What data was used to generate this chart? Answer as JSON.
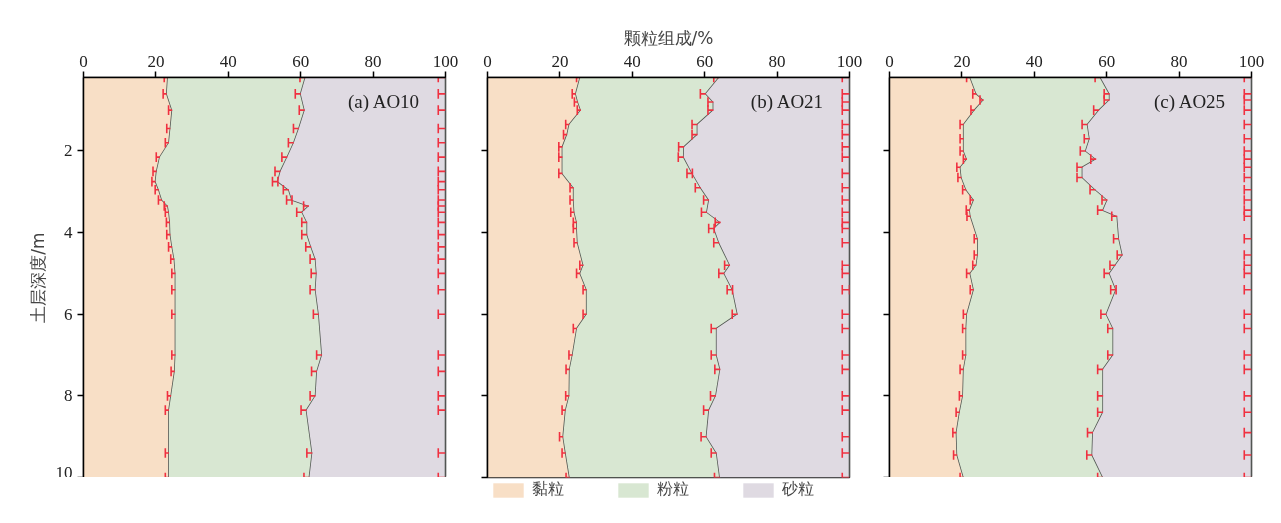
{
  "chart_data": [
    {
      "type": "area",
      "stacked": true,
      "orientation": "horizontal",
      "title": "(a) AO10",
      "ylabel": "土层深度/m",
      "xlim": [
        0,
        100
      ],
      "xticks": [
        0,
        20,
        40,
        60,
        80,
        100
      ],
      "ylim": [
        10,
        0.2
      ],
      "yticks": [
        2,
        4,
        6,
        8,
        10
      ],
      "x": [
        0.2,
        0.6,
        1.0,
        1.45,
        1.8,
        2.15,
        2.5,
        2.75,
        2.95,
        3.2,
        3.35,
        3.5,
        3.75,
        4.05,
        4.35,
        4.65,
        5.0,
        5.4,
        6.0,
        7.0,
        7.4,
        8.0,
        8.35,
        9.4,
        10.0
      ],
      "series": [
        {
          "color": "#f8dfc6",
          "values": [
            23.3,
            23.0,
            24.5,
            24.0,
            23.6,
            21.1,
            20.2,
            19.9,
            20.8,
            21.7,
            23.3,
            23.6,
            23.9,
            24.0,
            24.5,
            25.1,
            25.4,
            25.4,
            25.4,
            25.4,
            25.2,
            24.2,
            23.6,
            23.6,
            23.6
          ],
          "errors": [
            [
              22.3,
              23.3
            ],
            [
              22.0,
              23.0
            ],
            [
              23.5,
              24.5
            ],
            [
              23.0,
              24.0
            ],
            [
              22.6,
              23.6
            ],
            [
              20.1,
              21.1
            ],
            [
              19.2,
              20.2
            ],
            [
              18.9,
              19.9
            ],
            [
              19.8,
              20.8
            ],
            [
              20.7,
              21.7
            ],
            [
              22.3,
              23.3
            ],
            [
              22.6,
              23.6
            ],
            [
              22.9,
              23.9
            ],
            [
              23.0,
              24.0
            ],
            [
              23.5,
              24.5
            ],
            [
              24.1,
              25.1
            ],
            [
              24.4,
              25.4
            ],
            [
              24.4,
              25.4
            ],
            [
              24.4,
              25.4
            ],
            [
              24.4,
              25.4
            ],
            [
              24.2,
              25.2
            ],
            [
              23.2,
              24.2
            ],
            [
              22.6,
              23.6
            ],
            [
              22.6,
              23.6
            ],
            [
              22.6,
              23.6
            ]
          ]
        },
        {
          "color": "#d8e7d2",
          "values": [
            38.0,
            37.0,
            36.6,
            35.5,
            34.5,
            35.2,
            34.2,
            33.8,
            35.9,
            35.9,
            39.0,
            36.8,
            37.9,
            37.8,
            38.4,
            39.0,
            39.0,
            38.7,
            39.6,
            40.5,
            39.3,
            39.9,
            38.0,
            39.6,
            38.8
          ],
          "errors": [
            [
              59.8,
              61.3
            ],
            [
              58.5,
              60.0
            ],
            [
              59.6,
              61.1
            ],
            [
              58.0,
              59.5
            ],
            [
              56.6,
              58.1
            ],
            [
              54.8,
              56.3
            ],
            [
              52.9,
              54.4
            ],
            [
              52.2,
              53.7
            ],
            [
              55.2,
              56.7
            ],
            [
              56.1,
              57.6
            ],
            [
              60.8,
              62.3
            ],
            [
              58.9,
              60.4
            ],
            [
              60.3,
              61.8
            ],
            [
              60.3,
              61.8
            ],
            [
              61.4,
              62.9
            ],
            [
              62.6,
              64.1
            ],
            [
              62.9,
              64.4
            ],
            [
              62.6,
              64.1
            ],
            [
              63.5,
              65.0
            ],
            [
              64.4,
              65.9
            ],
            [
              63.0,
              64.5
            ],
            [
              62.6,
              64.1
            ],
            [
              60.1,
              61.6
            ],
            [
              61.7,
              63.2
            ],
            [
              60.9,
              62.4
            ]
          ]
        },
        {
          "color": "#dfdae2",
          "values": [
            38.7,
            40.0,
            38.9,
            40.5,
            41.9,
            43.7,
            45.6,
            46.3,
            43.3,
            42.4,
            37.7,
            39.6,
            38.2,
            38.2,
            37.1,
            35.9,
            35.6,
            35.9,
            35.0,
            34.1,
            35.5,
            35.9,
            38.4,
            36.8,
            37.6
          ],
          "errors": [
            [
              98.0,
              100.0
            ],
            [
              98.0,
              100.0
            ],
            [
              98.0,
              100.0
            ],
            [
              98.0,
              100.0
            ],
            [
              98.0,
              100.0
            ],
            [
              98.0,
              100.0
            ],
            [
              98.0,
              100.0
            ],
            [
              98.0,
              100.0
            ],
            [
              98.0,
              100.0
            ],
            [
              98.0,
              100.0
            ],
            [
              98.0,
              100.0
            ],
            [
              98.0,
              100.0
            ],
            [
              98.0,
              100.0
            ],
            [
              98.0,
              100.0
            ],
            [
              98.0,
              100.0
            ],
            [
              98.0,
              100.0
            ],
            [
              98.0,
              100.0
            ],
            [
              98.0,
              100.0
            ],
            [
              98.0,
              100.0
            ],
            [
              98.0,
              100.0
            ],
            [
              98.0,
              100.0
            ],
            [
              98.0,
              100.0
            ],
            [
              98.0,
              100.0
            ],
            [
              98.0,
              100.0
            ],
            [
              98.0,
              100.0
            ]
          ]
        }
      ]
    },
    {
      "type": "area",
      "stacked": true,
      "orientation": "horizontal",
      "title": "(b) AO21",
      "xlabel": "颗粒组成/%",
      "legend": "bottom",
      "tick_labels": "x",
      "xlim": [
        0,
        100
      ],
      "xticks": [
        0,
        20,
        40,
        60,
        80,
        100
      ],
      "ylim": [
        10,
        0.2
      ],
      "yticks": [
        2,
        4,
        6,
        8,
        10
      ],
      "x": [
        0.2,
        0.6,
        0.8,
        1.0,
        1.35,
        1.6,
        1.9,
        2.15,
        2.55,
        2.9,
        3.2,
        3.5,
        3.75,
        3.9,
        4.25,
        4.8,
        5.0,
        5.4,
        6.0,
        6.35,
        7.0,
        7.35,
        8.0,
        8.35,
        9.0,
        9.4,
        10.0
      ],
      "series": [
        {
          "name": "黏粒",
          "color": "#f8dfc6",
          "values": [
            25.6,
            24.4,
            25.0,
            25.8,
            22.6,
            22.0,
            20.7,
            20.7,
            20.7,
            23.8,
            23.8,
            24.0,
            24.7,
            24.7,
            24.9,
            26.5,
            25.6,
            27.4,
            27.4,
            24.7,
            23.5,
            22.7,
            22.6,
            21.6,
            20.9,
            21.6,
            22.7
          ],
          "errors": [
            [
              24.6,
              25.6
            ],
            [
              23.4,
              24.4
            ],
            [
              24.0,
              25.0
            ],
            [
              24.8,
              25.8
            ],
            [
              21.6,
              22.6
            ],
            [
              21.0,
              22.0
            ],
            [
              19.7,
              20.7
            ],
            [
              19.7,
              20.7
            ],
            [
              19.7,
              20.7
            ],
            [
              22.8,
              23.8
            ],
            [
              22.8,
              23.8
            ],
            [
              23.0,
              24.0
            ],
            [
              23.7,
              24.7
            ],
            [
              23.7,
              24.7
            ],
            [
              23.9,
              24.9
            ],
            [
              25.5,
              26.5
            ],
            [
              24.6,
              25.6
            ],
            [
              26.4,
              27.4
            ],
            [
              26.4,
              27.4
            ],
            [
              23.7,
              24.7
            ],
            [
              22.5,
              23.5
            ],
            [
              21.7,
              22.7
            ],
            [
              21.6,
              22.6
            ],
            [
              20.6,
              21.6
            ],
            [
              19.9,
              20.9
            ],
            [
              20.6,
              21.6
            ],
            [
              21.7,
              22.7
            ]
          ]
        },
        {
          "name": "粉粒",
          "color": "#d8e7d2",
          "values": [
            38.4,
            35.9,
            37.4,
            36.6,
            35.4,
            36.0,
            33.6,
            33.5,
            35.9,
            35.1,
            37.4,
            36.6,
            39.7,
            37.9,
            39.1,
            40.5,
            39.8,
            40.3,
            41.7,
            38.6,
            39.8,
            41.6,
            40.5,
            39.6,
            39.6,
            41.7,
            41.5
          ],
          "errors": [
            [
              62.5,
              64.0
            ],
            [
              58.8,
              60.3
            ],
            [
              60.9,
              62.4
            ],
            [
              60.9,
              62.4
            ],
            [
              56.5,
              58.0
            ],
            [
              56.5,
              58.0
            ],
            [
              52.8,
              54.3
            ],
            [
              52.7,
              54.2
            ],
            [
              55.1,
              56.6
            ],
            [
              57.4,
              58.9
            ],
            [
              59.7,
              61.2
            ],
            [
              59.1,
              60.6
            ],
            [
              62.9,
              64.4
            ],
            [
              61.1,
              62.6
            ],
            [
              62.5,
              64.0
            ],
            [
              65.5,
              67.0
            ],
            [
              63.9,
              65.4
            ],
            [
              66.2,
              67.7
            ],
            [
              67.6,
              69.1
            ],
            [
              61.8,
              63.3
            ],
            [
              61.8,
              63.3
            ],
            [
              62.8,
              64.3
            ],
            [
              61.6,
              63.1
            ],
            [
              59.7,
              61.2
            ],
            [
              59.0,
              60.5
            ],
            [
              61.8,
              63.3
            ],
            [
              62.7,
              64.2
            ]
          ]
        },
        {
          "name": "砂粒",
          "color": "#dfdae2",
          "values": [
            36.0,
            39.7,
            37.6,
            37.6,
            42.0,
            42.0,
            45.7,
            45.8,
            43.4,
            41.1,
            38.8,
            39.4,
            35.6,
            37.4,
            36.0,
            33.0,
            34.6,
            32.3,
            30.9,
            36.7,
            36.7,
            35.7,
            36.9,
            38.8,
            39.5,
            36.7,
            35.8
          ],
          "errors": [
            [
              98.0,
              100.0
            ],
            [
              98.0,
              100.0
            ],
            [
              98.0,
              100.0
            ],
            [
              98.0,
              100.0
            ],
            [
              98.0,
              100.0
            ],
            [
              98.0,
              100.0
            ],
            [
              98.0,
              100.0
            ],
            [
              98.0,
              100.0
            ],
            [
              98.0,
              100.0
            ],
            [
              98.0,
              100.0
            ],
            [
              98.0,
              100.0
            ],
            [
              98.0,
              100.0
            ],
            [
              98.0,
              100.0
            ],
            [
              98.0,
              100.0
            ],
            [
              98.0,
              100.0
            ],
            [
              98.0,
              100.0
            ],
            [
              98.0,
              100.0
            ],
            [
              98.0,
              100.0
            ],
            [
              98.0,
              100.0
            ],
            [
              98.0,
              100.0
            ],
            [
              98.0,
              100.0
            ],
            [
              98.0,
              100.0
            ],
            [
              98.0,
              100.0
            ],
            [
              98.0,
              100.0
            ],
            [
              98.0,
              100.0
            ],
            [
              98.0,
              100.0
            ],
            [
              98.0,
              100.0
            ]
          ]
        }
      ]
    },
    {
      "type": "area",
      "stacked": true,
      "orientation": "horizontal",
      "title": "(c) AO25",
      "tick_labels": "x",
      "xlim": [
        0,
        100
      ],
      "xticks": [
        0,
        20,
        40,
        60,
        80,
        100
      ],
      "ylim": [
        10,
        0.2
      ],
      "yticks": [
        2,
        4,
        6,
        8,
        10
      ],
      "x": [
        0.2,
        0.6,
        0.75,
        1.0,
        1.35,
        1.7,
        2.0,
        2.2,
        2.4,
        2.65,
        2.95,
        3.2,
        3.45,
        3.6,
        4.15,
        4.55,
        4.8,
        5.0,
        5.4,
        6.0,
        6.35,
        7.0,
        7.35,
        8.0,
        8.4,
        8.9,
        9.45,
        10.0
      ],
      "series": [
        {
          "color": "#f8dfc6",
          "values": [
            22.3,
            24.0,
            26.0,
            23.5,
            20.5,
            20.5,
            20.5,
            21.4,
            19.6,
            19.9,
            21.2,
            23.3,
            22.2,
            22.4,
            24.4,
            24.4,
            24.0,
            22.3,
            23.3,
            21.4,
            21.2,
            21.2,
            20.5,
            20.3,
            19.4,
            18.5,
            18.7,
            20.5
          ],
          "errors": [
            [
              21.3,
              22.3
            ],
            [
              23.0,
              24.0
            ],
            [
              25.0,
              26.0
            ],
            [
              22.5,
              23.5
            ],
            [
              19.5,
              20.5
            ],
            [
              19.5,
              20.5
            ],
            [
              19.5,
              20.5
            ],
            [
              20.4,
              21.4
            ],
            [
              18.6,
              19.6
            ],
            [
              18.9,
              19.9
            ],
            [
              20.2,
              21.2
            ],
            [
              22.3,
              23.3
            ],
            [
              21.2,
              22.2
            ],
            [
              21.4,
              22.4
            ],
            [
              23.4,
              24.4
            ],
            [
              23.4,
              24.4
            ],
            [
              23.0,
              24.0
            ],
            [
              21.3,
              22.3
            ],
            [
              22.3,
              23.3
            ],
            [
              20.4,
              21.4
            ],
            [
              20.2,
              21.2
            ],
            [
              20.2,
              21.2
            ],
            [
              19.5,
              20.5
            ],
            [
              19.3,
              20.3
            ],
            [
              18.4,
              19.4
            ],
            [
              17.5,
              18.5
            ],
            [
              17.7,
              18.7
            ],
            [
              19.5,
              20.5
            ]
          ]
        },
        {
          "color": "#d8e7d2",
          "values": [
            36.0,
            36.8,
            34.8,
            34.4,
            34.2,
            34.8,
            33.7,
            35.7,
            33.7,
            33.4,
            35.7,
            36.9,
            36.8,
            40.5,
            39.0,
            40.0,
            38.4,
            38.5,
            39.3,
            38.5,
            40.6,
            40.6,
            38.5,
            38.7,
            39.6,
            37.7,
            37.3,
            38.5
          ],
          "errors": [
            [
              56.8,
              58.3
            ],
            [
              59.3,
              60.8
            ],
            [
              59.3,
              60.8
            ],
            [
              56.4,
              57.9
            ],
            [
              53.2,
              54.7
            ],
            [
              53.8,
              55.3
            ],
            [
              52.7,
              54.2
            ],
            [
              55.6,
              57.1
            ],
            [
              51.8,
              53.3
            ],
            [
              51.8,
              53.3
            ],
            [
              55.4,
              56.9
            ],
            [
              58.7,
              60.2
            ],
            [
              57.5,
              59.0
            ],
            [
              61.4,
              62.9
            ],
            [
              61.9,
              63.4
            ],
            [
              62.9,
              64.4
            ],
            [
              60.9,
              62.4
            ],
            [
              59.3,
              60.8
            ],
            [
              61.1,
              62.6
            ],
            [
              58.4,
              59.9
            ],
            [
              60.3,
              61.8
            ],
            [
              60.3,
              61.8
            ],
            [
              57.5,
              59.0
            ],
            [
              57.5,
              59.0
            ],
            [
              57.5,
              59.0
            ],
            [
              54.7,
              56.2
            ],
            [
              54.5,
              56.0
            ],
            [
              57.5,
              59.0
            ]
          ]
        },
        {
          "color": "#dfdae2",
          "values": [
            41.7,
            39.2,
            39.2,
            42.1,
            45.3,
            44.7,
            45.8,
            42.9,
            46.7,
            46.7,
            43.1,
            39.8,
            41.0,
            37.1,
            36.6,
            35.6,
            37.6,
            39.2,
            37.4,
            40.1,
            38.2,
            38.2,
            41.0,
            41.0,
            41.0,
            43.8,
            44.0,
            41.0
          ],
          "errors": [
            [
              98.0,
              100.0
            ],
            [
              98.0,
              100.0
            ],
            [
              98.0,
              100.0
            ],
            [
              98.0,
              100.0
            ],
            [
              98.0,
              100.0
            ],
            [
              98.0,
              100.0
            ],
            [
              98.0,
              100.0
            ],
            [
              98.0,
              100.0
            ],
            [
              98.0,
              100.0
            ],
            [
              98.0,
              100.0
            ],
            [
              98.0,
              100.0
            ],
            [
              98.0,
              100.0
            ],
            [
              98.0,
              100.0
            ],
            [
              98.0,
              100.0
            ],
            [
              98.0,
              100.0
            ],
            [
              98.0,
              100.0
            ],
            [
              98.0,
              100.0
            ],
            [
              98.0,
              100.0
            ],
            [
              98.0,
              100.0
            ],
            [
              98.0,
              100.0
            ],
            [
              98.0,
              100.0
            ],
            [
              98.0,
              100.0
            ],
            [
              98.0,
              100.0
            ],
            [
              98.0,
              100.0
            ],
            [
              98.0,
              100.0
            ],
            [
              98.0,
              100.0
            ],
            [
              98.0,
              100.0
            ],
            [
              98.0,
              100.0
            ]
          ]
        }
      ]
    }
  ]
}
